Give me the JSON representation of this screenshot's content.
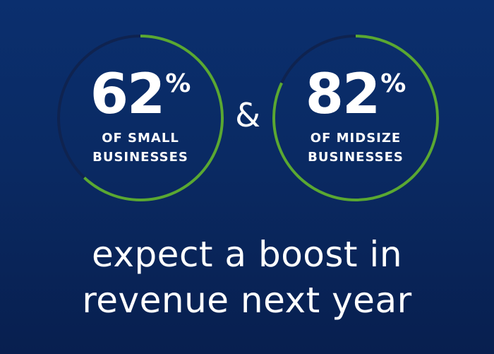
{
  "chart_data": [
    {
      "type": "pie",
      "value": 62,
      "unit": "%",
      "label_lines": [
        "OF SMALL",
        "BUSINESSES"
      ]
    },
    {
      "type": "pie",
      "value": 82,
      "unit": "%",
      "label_lines": [
        "OF MIDSIZE",
        "BUSINESSES"
      ]
    }
  ],
  "gauges": [
    {
      "value": "62",
      "unit": "%",
      "line1": "OF SMALL",
      "line2": "BUSINESSES"
    },
    {
      "value": "82",
      "unit": "%",
      "line1": "OF MIDSIZE",
      "line2": "BUSINESSES"
    }
  ],
  "connector": "&",
  "caption": {
    "line1": "expect a boost in",
    "line2": "revenue next year"
  },
  "colors": {
    "ring_filled": "#5aa832",
    "ring_track": "#0f2350",
    "text": "#ffffff",
    "background_top": "#0b2f6e",
    "background_bottom": "#081f4f"
  }
}
